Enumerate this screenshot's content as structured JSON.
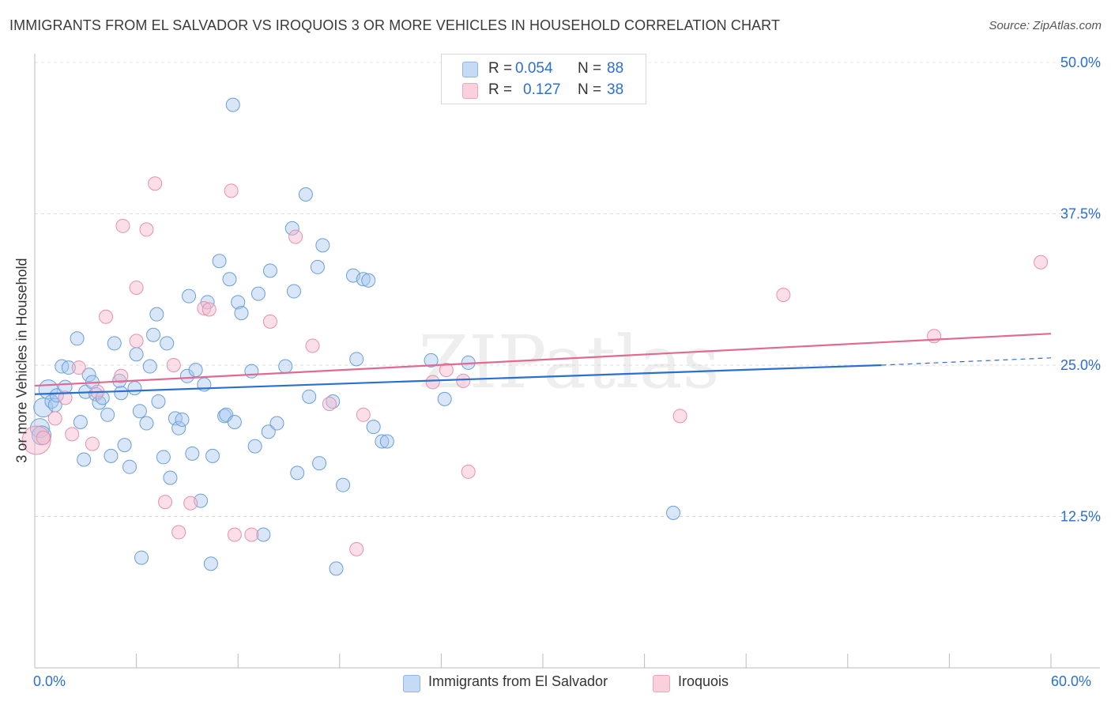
{
  "title": "IMMIGRANTS FROM EL SALVADOR VS IROQUOIS 3 OR MORE VEHICLES IN HOUSEHOLD CORRELATION CHART",
  "source": "Source: ZipAtlas.com",
  "watermark": "ZIPatlas",
  "legend": {
    "rows": [
      {
        "r_label": "R =",
        "r_value": "0.054",
        "n_label": "N =",
        "n_value": "88",
        "color": "#a8c8f0"
      },
      {
        "r_label": "R =",
        "r_value": "0.127",
        "n_label": "N =",
        "n_value": "38",
        "color": "#f6b8cb"
      }
    ]
  },
  "bottom_legend": {
    "series1": "Immigrants from El Salvador",
    "series2": "Iroquois"
  },
  "chart_data": {
    "type": "scatter",
    "title": "IMMIGRANTS FROM EL SALVADOR VS IROQUOIS 3 OR MORE VEHICLES IN HOUSEHOLD CORRELATION CHART",
    "xlabel": "",
    "ylabel": "3 or more Vehicles in Household",
    "xlim": [
      0,
      60
    ],
    "ylim": [
      0,
      50
    ],
    "x_tick_labels": [
      "0.0%",
      "60.0%"
    ],
    "y_ticks": [
      12.5,
      25.0,
      37.5,
      50.0
    ],
    "y_tick_labels": [
      "12.5%",
      "25.0%",
      "37.5%",
      "50.0%"
    ],
    "grid": "horizontal dashed",
    "legend_position": "top-center",
    "colors": {
      "series1_fill": "#a8c8f0",
      "series1_stroke": "#6a9fd8",
      "series1_line": "#2a6fd1",
      "series2_fill": "#f6b8cb",
      "series2_stroke": "#e890aa",
      "series2_line": "#e06a93",
      "axis_label": "#2a6fd1"
    },
    "series": [
      {
        "name": "Immigrants from El Salvador",
        "trend": {
          "x0": 0,
          "y0": 22.6,
          "x1": 50,
          "y1": 25.0,
          "dash_to_x": 60,
          "dash_to_y": 25.6
        },
        "points": [
          [
            0.3,
            19.8
          ],
          [
            0.4,
            19.2
          ],
          [
            0.5,
            21.5
          ],
          [
            0.8,
            23.0
          ],
          [
            1.0,
            22.0
          ],
          [
            1.2,
            21.7
          ],
          [
            1.3,
            22.5
          ],
          [
            1.6,
            24.9
          ],
          [
            1.8,
            23.2
          ],
          [
            2.0,
            24.8
          ],
          [
            2.5,
            27.2
          ],
          [
            2.7,
            20.3
          ],
          [
            2.9,
            17.2
          ],
          [
            3.0,
            22.8
          ],
          [
            3.2,
            24.2
          ],
          [
            3.4,
            23.6
          ],
          [
            3.6,
            22.6
          ],
          [
            3.8,
            21.9
          ],
          [
            4.0,
            22.3
          ],
          [
            4.3,
            20.9
          ],
          [
            4.5,
            17.5
          ],
          [
            4.7,
            26.8
          ],
          [
            5.0,
            23.7
          ],
          [
            5.1,
            22.7
          ],
          [
            5.3,
            18.4
          ],
          [
            5.6,
            16.6
          ],
          [
            5.9,
            23.1
          ],
          [
            6.0,
            25.9
          ],
          [
            6.2,
            21.2
          ],
          [
            6.3,
            9.1
          ],
          [
            6.6,
            20.2
          ],
          [
            6.8,
            24.9
          ],
          [
            7.0,
            27.5
          ],
          [
            7.2,
            29.2
          ],
          [
            7.6,
            17.4
          ],
          [
            7.8,
            26.8
          ],
          [
            8.0,
            15.7
          ],
          [
            8.3,
            20.6
          ],
          [
            8.5,
            19.8
          ],
          [
            8.7,
            20.5
          ],
          [
            9.0,
            24.1
          ],
          [
            9.1,
            30.7
          ],
          [
            9.3,
            17.7
          ],
          [
            9.5,
            24.6
          ],
          [
            9.8,
            13.8
          ],
          [
            10.0,
            23.4
          ],
          [
            10.2,
            30.2
          ],
          [
            10.4,
            8.6
          ],
          [
            10.5,
            17.5
          ],
          [
            10.9,
            33.6
          ],
          [
            11.2,
            20.8
          ],
          [
            11.3,
            20.9
          ],
          [
            11.5,
            32.1
          ],
          [
            11.8,
            20.3
          ],
          [
            12.0,
            30.2
          ],
          [
            12.2,
            29.3
          ],
          [
            12.8,
            24.5
          ],
          [
            13.0,
            18.3
          ],
          [
            13.2,
            30.9
          ],
          [
            13.5,
            11.0
          ],
          [
            13.8,
            19.5
          ],
          [
            13.9,
            32.8
          ],
          [
            14.3,
            20.2
          ],
          [
            14.8,
            24.9
          ],
          [
            15.2,
            36.3
          ],
          [
            15.3,
            31.1
          ],
          [
            15.5,
            16.1
          ],
          [
            16.0,
            39.1
          ],
          [
            16.2,
            22.4
          ],
          [
            16.7,
            33.1
          ],
          [
            16.8,
            16.9
          ],
          [
            17.0,
            34.9
          ],
          [
            17.6,
            22.0
          ],
          [
            17.8,
            8.2
          ],
          [
            18.2,
            15.1
          ],
          [
            18.8,
            32.4
          ],
          [
            19.0,
            25.5
          ],
          [
            19.4,
            32.1
          ],
          [
            19.7,
            32.0
          ],
          [
            20.0,
            19.9
          ],
          [
            20.5,
            18.7
          ],
          [
            20.8,
            18.7
          ],
          [
            23.4,
            25.4
          ],
          [
            24.2,
            22.2
          ],
          [
            25.6,
            25.2
          ],
          [
            37.7,
            12.8
          ],
          [
            11.7,
            46.5
          ],
          [
            7.3,
            22.0
          ]
        ]
      },
      {
        "name": "Iroquois",
        "trend": {
          "x0": 0,
          "y0": 23.3,
          "x1": 60,
          "y1": 27.6
        },
        "points": [
          [
            0.1,
            18.8
          ],
          [
            0.5,
            19.0
          ],
          [
            1.2,
            20.6
          ],
          [
            1.8,
            22.3
          ],
          [
            2.2,
            19.3
          ],
          [
            2.6,
            24.8
          ],
          [
            3.4,
            18.5
          ],
          [
            3.7,
            22.8
          ],
          [
            4.2,
            29.0
          ],
          [
            5.1,
            24.1
          ],
          [
            5.2,
            36.5
          ],
          [
            6.0,
            27.0
          ],
          [
            6.0,
            31.4
          ],
          [
            6.6,
            36.2
          ],
          [
            7.1,
            40.0
          ],
          [
            7.7,
            13.7
          ],
          [
            8.2,
            25.0
          ],
          [
            8.5,
            11.2
          ],
          [
            9.2,
            13.6
          ],
          [
            10.0,
            29.7
          ],
          [
            10.3,
            29.6
          ],
          [
            11.6,
            39.4
          ],
          [
            11.8,
            11.0
          ],
          [
            12.8,
            11.0
          ],
          [
            13.9,
            28.6
          ],
          [
            15.4,
            35.6
          ],
          [
            16.4,
            26.6
          ],
          [
            17.4,
            21.8
          ],
          [
            19.0,
            9.8
          ],
          [
            19.4,
            20.9
          ],
          [
            23.5,
            23.6
          ],
          [
            24.3,
            24.6
          ],
          [
            25.3,
            23.7
          ],
          [
            25.6,
            16.2
          ],
          [
            38.1,
            20.8
          ],
          [
            44.2,
            30.8
          ],
          [
            53.1,
            27.4
          ],
          [
            59.4,
            33.5
          ]
        ]
      }
    ]
  }
}
